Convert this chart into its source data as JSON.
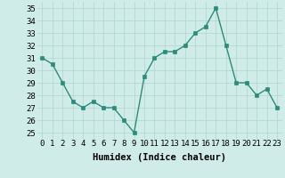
{
  "x": [
    0,
    1,
    2,
    3,
    4,
    5,
    6,
    7,
    8,
    9,
    10,
    11,
    12,
    13,
    14,
    15,
    16,
    17,
    18,
    19,
    20,
    21,
    22,
    23
  ],
  "y": [
    31,
    30.5,
    29,
    27.5,
    27,
    27.5,
    27,
    27,
    26,
    25,
    29.5,
    31,
    31.5,
    31.5,
    32,
    33,
    33.5,
    35,
    32,
    29,
    29,
    28,
    28.5,
    27
  ],
  "line_color": "#2e8b7a",
  "marker_color": "#2e8b7a",
  "bg_color": "#d0ece8",
  "grid_color": "#b0d5cf",
  "xlabel": "Humidex (Indice chaleur)",
  "ylim": [
    24.5,
    35.5
  ],
  "xlim": [
    -0.5,
    23.5
  ],
  "yticks": [
    25,
    26,
    27,
    28,
    29,
    30,
    31,
    32,
    33,
    34,
    35
  ],
  "xticks": [
    0,
    1,
    2,
    3,
    4,
    5,
    6,
    7,
    8,
    9,
    10,
    11,
    12,
    13,
    14,
    15,
    16,
    17,
    18,
    19,
    20,
    21,
    22,
    23
  ],
  "tick_fontsize": 6.5,
  "xlabel_fontsize": 7.5,
  "line_width": 1.0,
  "marker_size": 2.5
}
